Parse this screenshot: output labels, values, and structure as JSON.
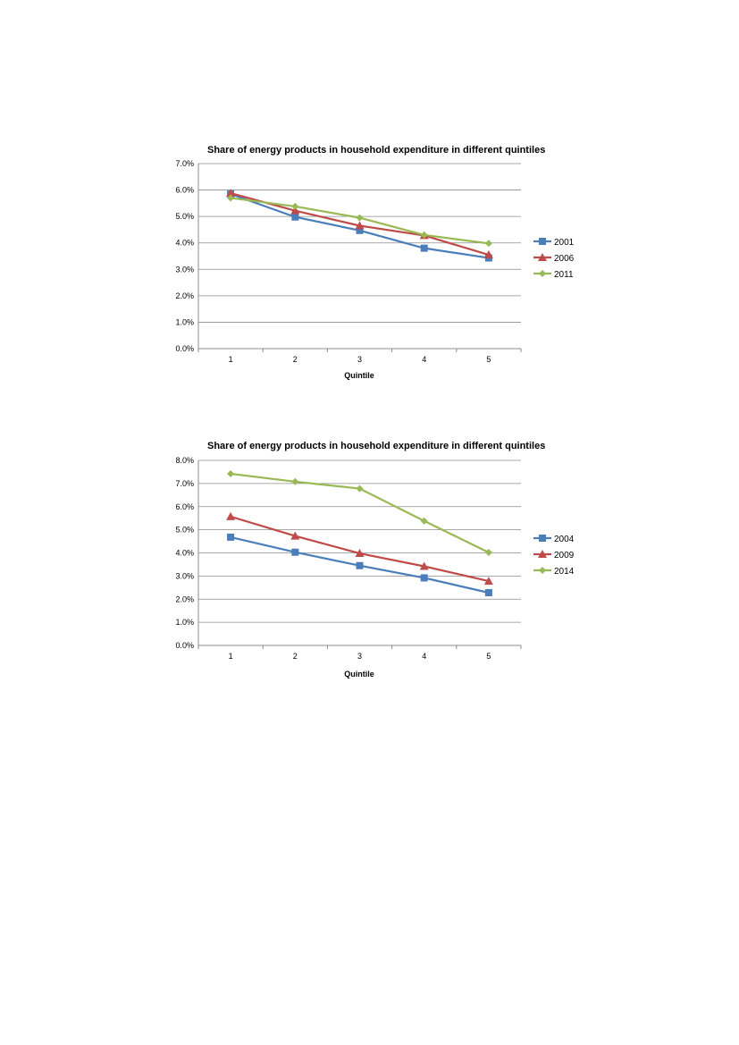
{
  "chart_data": [
    {
      "type": "line",
      "title": "Share of energy products in household expenditure in different quintiles",
      "xlabel": "Quintile",
      "ylabel": "",
      "categories": [
        "1",
        "2",
        "3",
        "4",
        "5"
      ],
      "y_ticks": [
        "0.0%",
        "1.0%",
        "2.0%",
        "3.0%",
        "4.0%",
        "5.0%",
        "6.0%",
        "7.0%"
      ],
      "ylim": [
        0,
        7
      ],
      "grid": true,
      "legend": "right",
      "series": [
        {
          "name": "2001",
          "values": [
            5.85,
            4.98,
            4.47,
            3.8,
            3.43
          ],
          "color": "#4a7ebb",
          "marker": "square"
        },
        {
          "name": "2006",
          "values": [
            5.88,
            5.22,
            4.65,
            4.28,
            3.55
          ],
          "color": "#be4b48",
          "marker": "triangle"
        },
        {
          "name": "2011",
          "values": [
            5.7,
            5.38,
            4.95,
            4.3,
            3.98
          ],
          "color": "#98b954",
          "marker": "diamond"
        }
      ]
    },
    {
      "type": "line",
      "title": "Share of energy products in household expenditure in different quintiles",
      "xlabel": "Quintile",
      "ylabel": "",
      "categories": [
        "1",
        "2",
        "3",
        "4",
        "5"
      ],
      "y_ticks": [
        "0.0%",
        "1.0%",
        "2.0%",
        "3.0%",
        "4.0%",
        "5.0%",
        "6.0%",
        "7.0%",
        "8.0%"
      ],
      "ylim": [
        0,
        8
      ],
      "grid": true,
      "legend": "right",
      "series": [
        {
          "name": "2004",
          "values": [
            4.68,
            4.03,
            3.45,
            2.92,
            2.28
          ],
          "color": "#4a7ebb",
          "marker": "square"
        },
        {
          "name": "2009",
          "values": [
            5.57,
            4.73,
            3.98,
            3.42,
            2.78
          ],
          "color": "#be4b48",
          "marker": "triangle"
        },
        {
          "name": "2014",
          "values": [
            7.42,
            7.08,
            6.78,
            5.38,
            4.02
          ],
          "color": "#98b954",
          "marker": "diamond"
        }
      ]
    }
  ]
}
